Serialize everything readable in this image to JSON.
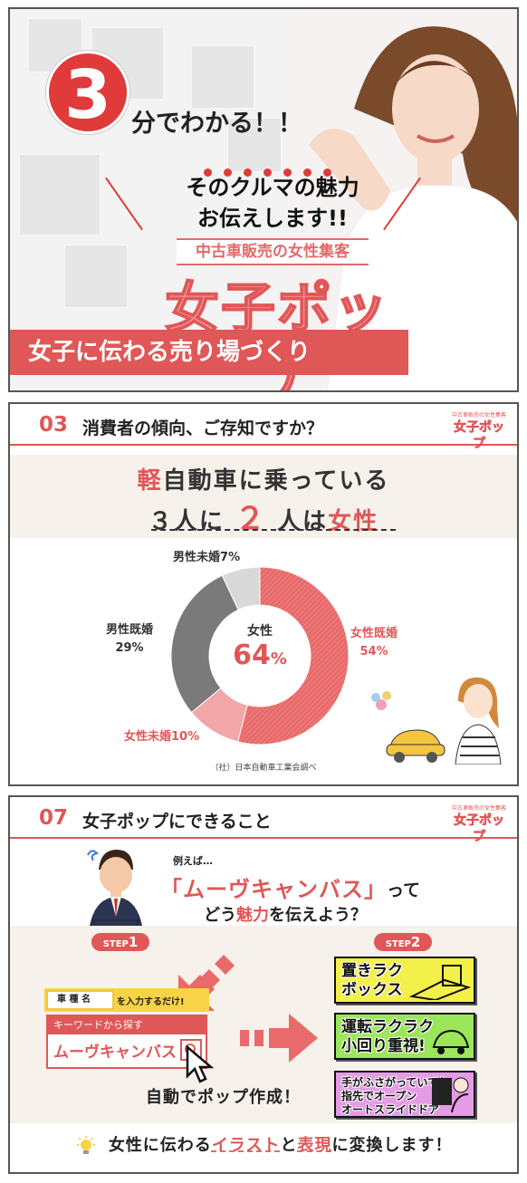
{
  "panel1": {
    "badge_number": "3",
    "minutes_text": "分でわかる！！",
    "title_line1": "そのクルマの魅力",
    "title_line2": "お伝えします!!",
    "ribbon": "中古車販売の女性集客",
    "brand": "女子ポップ",
    "tagline": "女子に伝わる売り場づくり"
  },
  "panel2": {
    "section_number": "03",
    "section_title": "消費者の傾向、ご存知ですか？",
    "logo_small": "中古車販売の女性集客",
    "logo_big": "女子ポップ",
    "headline1_a": "軽",
    "headline1_b": "自動車に乗っている",
    "headline2_a": "３人に",
    "headline2_b": "２",
    "headline2_c": "人は",
    "headline2_d": "女性",
    "center_label": "女性",
    "center_value": "64",
    "center_unit": "%",
    "source": "（社）日本自動車工業会調べ"
  },
  "chart_data": {
    "type": "pie",
    "categories": [
      "女性既婚",
      "女性未婚",
      "男性既婚",
      "男性未婚"
    ],
    "values": [
      54,
      10,
      29,
      7
    ],
    "unit": "%",
    "colors": [
      "#e86a6a",
      "#f1a7a7",
      "#7a7a7a",
      "#d9d9d9"
    ],
    "donut": true,
    "center_text": "女性 64%"
  },
  "chart_labels": {
    "f_married": "女性既婚",
    "f_married_pct": "54",
    "f_single": "女性未婚",
    "f_single_pct": "10",
    "m_married": "男性既婚",
    "m_married_pct": "29",
    "m_single": "男性未婚",
    "m_single_pct": "7",
    "pct_sign": "%"
  },
  "panel3": {
    "section_number": "07",
    "section_title": "女子ポップにできること",
    "logo_small": "中古車販売の女性集客",
    "logo_big": "女子ポップ",
    "example_prefix": "例えば…",
    "question_car": "「ムーヴキャンバス」",
    "question_tte": "って",
    "question_line2_a": "どう",
    "question_line2_b": "魅力",
    "question_line2_c": "を伝えよう？",
    "step1_prefix": "STEP",
    "step1_num": "1",
    "step2_prefix": "STEP",
    "step2_num": "2",
    "car_type_tag": "車 種 名",
    "car_type_note": "を入力するだけ!",
    "keyword_header": "キーワードから探す",
    "keyword_value": "ムーヴキャンバス",
    "auto_create": "自動でポップ作成！",
    "pop1": "置きラク\nボックス",
    "pop2": "運転ラクラク\n小回り重視!",
    "pop3": "手がふさがっていても\n指先でオープン\nオートスライドドア",
    "pop_colors": [
      "#f4f04a",
      "#9be65a",
      "#e59be6"
    ],
    "footer_a": "女性に伝わる",
    "footer_b": "イラスト",
    "footer_c": "と",
    "footer_d": "表現",
    "footer_e": "に変換します！"
  }
}
